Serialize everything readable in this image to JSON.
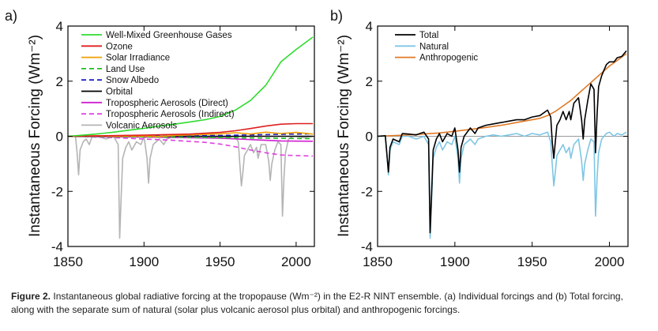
{
  "caption": {
    "label": "Figure 2.",
    "text": "Instantaneous global radiative forcing at the tropopause (Wm⁻²) in the E2-R NINT ensemble. (a) Individual forcings and (b) Total forcing, along with the separate sum of natural (solar plus volcanic aerosol plus orbital) and anthropogenic forcings."
  },
  "chart_data": [
    {
      "panel_label": "a)",
      "type": "line",
      "xlim": [
        1850,
        2012
      ],
      "ylim": [
        -4,
        4
      ],
      "xticks": [
        1850,
        1900,
        1950,
        2000
      ],
      "yticks": [
        -4,
        -2,
        0,
        2,
        4
      ],
      "ylabel": "Instantaneous Forcing (Wm⁻²)",
      "legend_position": "top-left",
      "series": [
        {
          "name": "Well-Mixed Greenhouse Gases",
          "color": "#2fdc2f",
          "dash": "solid",
          "x": [
            1850,
            1860,
            1870,
            1880,
            1890,
            1900,
            1910,
            1920,
            1930,
            1940,
            1950,
            1960,
            1970,
            1980,
            1990,
            2000,
            2011
          ],
          "y": [
            0,
            0.04,
            0.09,
            0.15,
            0.22,
            0.29,
            0.37,
            0.44,
            0.52,
            0.6,
            0.72,
            0.95,
            1.3,
            1.85,
            2.7,
            3.15,
            3.6
          ]
        },
        {
          "name": "Ozone",
          "color": "#e02020",
          "dash": "solid",
          "x": [
            1850,
            1900,
            1930,
            1950,
            1960,
            1970,
            1980,
            1990,
            2000,
            2011
          ],
          "y": [
            0,
            0.04,
            0.08,
            0.14,
            0.2,
            0.28,
            0.37,
            0.44,
            0.46,
            0.46
          ]
        },
        {
          "name": "Solar Irradiance",
          "color": "#f0a000",
          "dash": "solid",
          "x": [
            1850,
            1870,
            1880,
            1900,
            1910,
            1920,
            1930,
            1940,
            1950,
            1960,
            1970,
            1980,
            1990,
            2000,
            2011
          ],
          "y": [
            0,
            0.02,
            0,
            0.01,
            -0.01,
            0.03,
            0.05,
            0.07,
            0.09,
            0.13,
            0.08,
            0.15,
            0.1,
            0.14,
            0.08
          ]
        },
        {
          "name": "Land Use",
          "color": "#20c020",
          "dash": "dashed",
          "x": [
            1850,
            1900,
            1950,
            2000,
            2011
          ],
          "y": [
            0,
            -0.02,
            -0.05,
            -0.08,
            -0.09
          ]
        },
        {
          "name": "Snow Albedo",
          "color": "#2020c0",
          "dash": "dashed",
          "x": [
            1850,
            1900,
            1950,
            1980,
            2000,
            2011
          ],
          "y": [
            0,
            0.01,
            0.03,
            0.06,
            0.08,
            0.09
          ]
        },
        {
          "name": "Orbital",
          "color": "#000000",
          "dash": "solid",
          "x": [
            1850,
            2011
          ],
          "y": [
            0,
            0
          ]
        },
        {
          "name": "Tropospheric Aerosols (Direct)",
          "color": "#d020d0",
          "dash": "solid",
          "x": [
            1850,
            1900,
            1950,
            1970,
            1990,
            2011
          ],
          "y": [
            0,
            -0.03,
            -0.07,
            -0.12,
            -0.17,
            -0.18
          ]
        },
        {
          "name": "Tropospheric Aerosols (Indirect)",
          "color": "#e040e0",
          "dash": "dashed",
          "x": [
            1850,
            1880,
            1900,
            1920,
            1940,
            1950,
            1960,
            1970,
            1980,
            1990,
            2000,
            2011
          ],
          "y": [
            0,
            -0.05,
            -0.1,
            -0.15,
            -0.22,
            -0.28,
            -0.38,
            -0.5,
            -0.6,
            -0.68,
            -0.7,
            -0.72
          ]
        },
        {
          "name": "Volcanic Aerosols",
          "color": "#b4b4b4",
          "dash": "solid",
          "x": [
            1850,
            1855,
            1856,
            1857,
            1858,
            1860,
            1862,
            1864,
            1866,
            1870,
            1875,
            1880,
            1883,
            1884,
            1885,
            1886,
            1888,
            1890,
            1892,
            1895,
            1898,
            1900,
            1902,
            1903,
            1904,
            1906,
            1910,
            1913,
            1915,
            1920,
            1925,
            1930,
            1935,
            1940,
            1945,
            1950,
            1955,
            1960,
            1962,
            1963,
            1964,
            1965,
            1966,
            1968,
            1970,
            1972,
            1974,
            1975,
            1977,
            1980,
            1982,
            1983,
            1984,
            1986,
            1988,
            1990,
            1991,
            1992,
            1993,
            1995,
            1998,
            2000,
            2005,
            2011
          ],
          "y": [
            0,
            0,
            -0.6,
            -1.4,
            -0.5,
            -0.2,
            -0.1,
            -0.3,
            0,
            0,
            -0.1,
            0,
            -0.3,
            -3.7,
            -2.2,
            -0.8,
            -0.4,
            -0.2,
            -0.5,
            -0.2,
            -0.3,
            0,
            -0.8,
            -1.7,
            -0.8,
            -0.3,
            -0.1,
            -0.3,
            -0.1,
            0,
            0,
            -0.05,
            0,
            0,
            -0.05,
            0,
            -0.05,
            0,
            -0.2,
            -1.0,
            -1.8,
            -1.3,
            -0.7,
            -0.5,
            -0.3,
            -0.6,
            -0.4,
            -0.8,
            -0.3,
            -0.3,
            -0.9,
            -1.6,
            -1.0,
            -0.5,
            -0.2,
            -0.3,
            -2.9,
            -1.5,
            -0.6,
            -0.1,
            0,
            0,
            -0.05,
            0
          ]
        }
      ]
    },
    {
      "panel_label": "b)",
      "type": "line",
      "xlim": [
        1850,
        2012
      ],
      "ylim": [
        -4,
        4
      ],
      "xticks": [
        1850,
        1900,
        1950,
        2000
      ],
      "yticks": [
        -4,
        -2,
        0,
        2,
        4
      ],
      "ylabel": "Instantaneous Forcing (Wm⁻²)",
      "legend_position": "top-left",
      "series": [
        {
          "name": "Total",
          "color": "#000000",
          "dash": "solid",
          "x": [
            1850,
            1855,
            1857,
            1858,
            1860,
            1864,
            1866,
            1870,
            1875,
            1880,
            1883,
            1884,
            1885,
            1886,
            1888,
            1890,
            1892,
            1895,
            1898,
            1900,
            1902,
            1903,
            1904,
            1906,
            1910,
            1913,
            1915,
            1920,
            1925,
            1930,
            1935,
            1940,
            1945,
            1950,
            1955,
            1960,
            1962,
            1963,
            1964,
            1965,
            1966,
            1968,
            1970,
            1972,
            1974,
            1975,
            1977,
            1980,
            1982,
            1983,
            1984,
            1986,
            1988,
            1990,
            1991,
            1992,
            1993,
            1995,
            1998,
            2000,
            2003,
            2005,
            2008,
            2011
          ],
          "y": [
            0,
            0.02,
            -1.3,
            -0.4,
            -0.1,
            -0.2,
            0.1,
            0.08,
            0.05,
            0.15,
            -0.1,
            -3.5,
            -2.0,
            -0.5,
            -0.1,
            0.1,
            -0.2,
            0.1,
            0.0,
            0.3,
            -0.5,
            -1.3,
            -0.4,
            0.0,
            0.3,
            0.1,
            0.3,
            0.4,
            0.45,
            0.5,
            0.55,
            0.6,
            0.6,
            0.7,
            0.75,
            0.95,
            0.7,
            -0.2,
            -0.8,
            -0.2,
            0.4,
            0.6,
            0.9,
            0.6,
            0.9,
            0.6,
            1.2,
            1.4,
            0.6,
            -0.1,
            0.6,
            1.3,
            1.9,
            1.7,
            -0.6,
            0.8,
            1.8,
            2.2,
            2.6,
            2.7,
            2.7,
            2.85,
            2.9,
            3.1
          ]
        },
        {
          "name": "Natural",
          "color": "#7ec6e4",
          "dash": "solid",
          "x": [
            1850,
            1855,
            1856,
            1857,
            1858,
            1860,
            1864,
            1866,
            1870,
            1875,
            1880,
            1883,
            1884,
            1885,
            1886,
            1888,
            1890,
            1892,
            1895,
            1898,
            1900,
            1902,
            1903,
            1904,
            1906,
            1910,
            1913,
            1915,
            1920,
            1925,
            1930,
            1935,
            1940,
            1945,
            1950,
            1955,
            1960,
            1962,
            1963,
            1964,
            1965,
            1966,
            1968,
            1970,
            1972,
            1974,
            1975,
            1977,
            1980,
            1982,
            1983,
            1984,
            1986,
            1988,
            1990,
            1991,
            1992,
            1993,
            1995,
            1998,
            2000,
            2003,
            2005,
            2008,
            2011
          ],
          "y": [
            0,
            0,
            -0.6,
            -1.4,
            -0.5,
            -0.2,
            -0.3,
            0,
            0,
            -0.1,
            0,
            -0.3,
            -3.7,
            -2.2,
            -0.8,
            -0.4,
            -0.2,
            -0.5,
            -0.2,
            -0.3,
            0,
            -0.8,
            -1.7,
            -0.8,
            -0.3,
            -0.1,
            -0.3,
            -0.1,
            0,
            0.05,
            0,
            0.05,
            0.1,
            0,
            0.1,
            0.05,
            0.15,
            -0.2,
            -1.0,
            -1.8,
            -1.3,
            -0.7,
            -0.5,
            -0.3,
            -0.6,
            -0.4,
            -0.8,
            -0.3,
            -0.1,
            -0.9,
            -1.6,
            -1.0,
            -0.5,
            -0.1,
            -0.2,
            -2.9,
            -1.5,
            -0.6,
            -0.1,
            0.1,
            0.15,
            0.0,
            0.1,
            0.05,
            0.15
          ]
        },
        {
          "name": "Anthropogenic",
          "color": "#e07a26",
          "dash": "solid",
          "x": [
            1850,
            1870,
            1890,
            1900,
            1910,
            1920,
            1930,
            1940,
            1950,
            1955,
            1960,
            1965,
            1970,
            1975,
            1980,
            1985,
            1990,
            1995,
            2000,
            2005,
            2011
          ],
          "y": [
            0,
            0.05,
            0.12,
            0.18,
            0.25,
            0.32,
            0.4,
            0.5,
            0.6,
            0.65,
            0.75,
            0.9,
            1.1,
            1.3,
            1.55,
            1.8,
            2.05,
            2.3,
            2.55,
            2.75,
            3.0
          ]
        }
      ]
    }
  ]
}
